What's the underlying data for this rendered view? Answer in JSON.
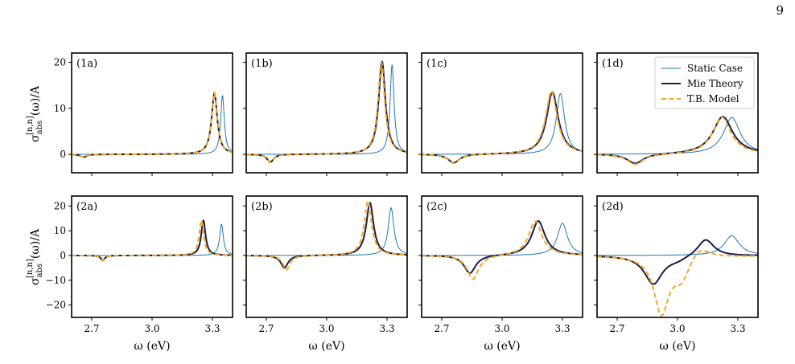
{
  "page_number": "9",
  "colors": {
    "static": "#1f77b4",
    "mie": "#1c1c4a",
    "tb": "#f5a623"
  },
  "chart_data": {
    "type": "line",
    "layout": "2x4 grid",
    "xlabel": "ω (eV)",
    "ylabel_html": "σ_abs^[n,n](ω)/A",
    "ylabel_parts": {
      "sigma": "σ",
      "sub": "abs",
      "sup": "[n,n]",
      "rest": "(ω)/A"
    },
    "xlim": [
      2.6,
      3.4
    ],
    "xticks": [
      2.7,
      3.0,
      3.3
    ],
    "xtick_labels": [
      "2.7",
      "3.0",
      "3.3"
    ],
    "legend": {
      "placement": "top-right of panel (1d)",
      "entries": [
        "Static Case",
        "Mie Theory",
        "T.B. Model"
      ]
    },
    "rows": [
      {
        "ylim": [
          -4,
          22
        ],
        "yticks": [
          0,
          10,
          20
        ],
        "ytick_labels": [
          "0",
          "10",
          "20"
        ]
      },
      {
        "ylim": [
          -25,
          24
        ],
        "yticks": [
          -20,
          -10,
          0,
          10,
          20
        ],
        "ytick_labels": [
          "−20",
          "−10",
          "0",
          "10",
          "20"
        ]
      }
    ],
    "panels": [
      {
        "label": "(1a)",
        "row": 0,
        "static": {
          "peaks": [
            {
              "x0": 3.35,
              "g": 0.011,
              "a": 12.8
            }
          ]
        },
        "mie": {
          "peaks": [
            {
              "x0": 3.31,
              "g": 0.017,
              "a": 13.3
            },
            {
              "x0": 2.66,
              "g": 0.02,
              "a": -0.6
            }
          ]
        },
        "tb": {
          "peaks": [
            {
              "x0": 3.31,
              "g": 0.017,
              "a": 13.3
            },
            {
              "x0": 2.66,
              "g": 0.02,
              "a": -0.6
            }
          ]
        }
      },
      {
        "label": "(1b)",
        "row": 0,
        "static": {
          "peaks": [
            {
              "x0": 3.325,
              "g": 0.012,
              "a": 19.5
            }
          ]
        },
        "mie": {
          "peaks": [
            {
              "x0": 3.275,
              "g": 0.02,
              "a": 20.2
            },
            {
              "x0": 2.72,
              "g": 0.02,
              "a": -1.7
            }
          ]
        },
        "tb": {
          "peaks": [
            {
              "x0": 3.272,
              "g": 0.02,
              "a": 20.0
            },
            {
              "x0": 2.72,
              "g": 0.02,
              "a": -1.8
            }
          ]
        }
      },
      {
        "label": "(1c)",
        "row": 0,
        "static": {
          "peaks": [
            {
              "x0": 3.29,
              "g": 0.025,
              "a": 13.2
            }
          ]
        },
        "mie": {
          "peaks": [
            {
              "x0": 3.25,
              "g": 0.035,
              "a": 13.5
            },
            {
              "x0": 2.76,
              "g": 0.035,
              "a": -1.9
            }
          ]
        },
        "tb": {
          "peaks": [
            {
              "x0": 3.245,
              "g": 0.035,
              "a": 13.6
            },
            {
              "x0": 2.76,
              "g": 0.035,
              "a": -2.0
            }
          ]
        }
      },
      {
        "label": "(1d)",
        "row": 0,
        "static": {
          "peaks": [
            {
              "x0": 3.27,
              "g": 0.05,
              "a": 8.0
            }
          ]
        },
        "mie": {
          "peaks": [
            {
              "x0": 3.225,
              "g": 0.06,
              "a": 8.2
            },
            {
              "x0": 2.79,
              "g": 0.05,
              "a": -2.1
            }
          ]
        },
        "tb": {
          "peaks": [
            {
              "x0": 3.22,
              "g": 0.055,
              "a": 8.1
            },
            {
              "x0": 2.79,
              "g": 0.05,
              "a": -2.3
            }
          ]
        }
      },
      {
        "label": "(2a)",
        "row": 1,
        "static": {
          "peaks": [
            {
              "x0": 3.345,
              "g": 0.011,
              "a": 12.7
            }
          ]
        },
        "mie": {
          "peaks": [
            {
              "x0": 3.255,
              "g": 0.013,
              "a": 14.2
            },
            {
              "x0": 2.755,
              "g": 0.012,
              "a": -2.0
            }
          ]
        },
        "tb": {
          "peaks": [
            {
              "x0": 3.245,
              "g": 0.013,
              "a": 14.3
            },
            {
              "x0": 2.752,
              "g": 0.012,
              "a": -2.1
            }
          ]
        }
      },
      {
        "label": "(2b)",
        "row": 1,
        "static": {
          "peaks": [
            {
              "x0": 3.32,
              "g": 0.017,
              "a": 19.3
            }
          ]
        },
        "mie": {
          "peaks": [
            {
              "x0": 3.215,
              "g": 0.022,
              "a": 21.3
            },
            {
              "x0": 2.79,
              "g": 0.022,
              "a": -5.0
            }
          ]
        },
        "tb": {
          "peaks": [
            {
              "x0": 3.205,
              "g": 0.022,
              "a": 22.0
            },
            {
              "x0": 2.8,
              "g": 0.022,
              "a": -5.8
            }
          ]
        }
      },
      {
        "label": "(2c)",
        "row": 1,
        "static": {
          "peaks": [
            {
              "x0": 3.3,
              "g": 0.03,
              "a": 13.0
            }
          ]
        },
        "mie": {
          "peaks": [
            {
              "x0": 3.18,
              "g": 0.04,
              "a": 14.0
            },
            {
              "x0": 2.84,
              "g": 0.035,
              "a": -7.3
            }
          ]
        },
        "tb": {
          "peaks": [
            {
              "x0": 3.165,
              "g": 0.04,
              "a": 13.9
            },
            {
              "x0": 2.855,
              "g": 0.035,
              "a": -9.8
            }
          ]
        }
      },
      {
        "label": "(2d)",
        "row": 1,
        "static": {
          "peaks": [
            {
              "x0": 3.27,
              "g": 0.045,
              "a": 8.0
            }
          ]
        },
        "mie": {
          "peaks": [
            {
              "x0": 3.14,
              "g": 0.05,
              "a": 7.0
            },
            {
              "x0": 2.88,
              "g": 0.055,
              "a": -11.5
            },
            {
              "x0": 3.0,
              "g": 0.06,
              "a": -1.5
            }
          ]
        },
        "tb": {
          "peaks": [
            {
              "x0": 3.11,
              "g": 0.06,
              "a": 5.0
            },
            {
              "x0": 2.92,
              "g": 0.045,
              "a": -23.0
            },
            {
              "x0": 3.02,
              "g": 0.05,
              "a": -9.0
            }
          ]
        }
      }
    ]
  }
}
